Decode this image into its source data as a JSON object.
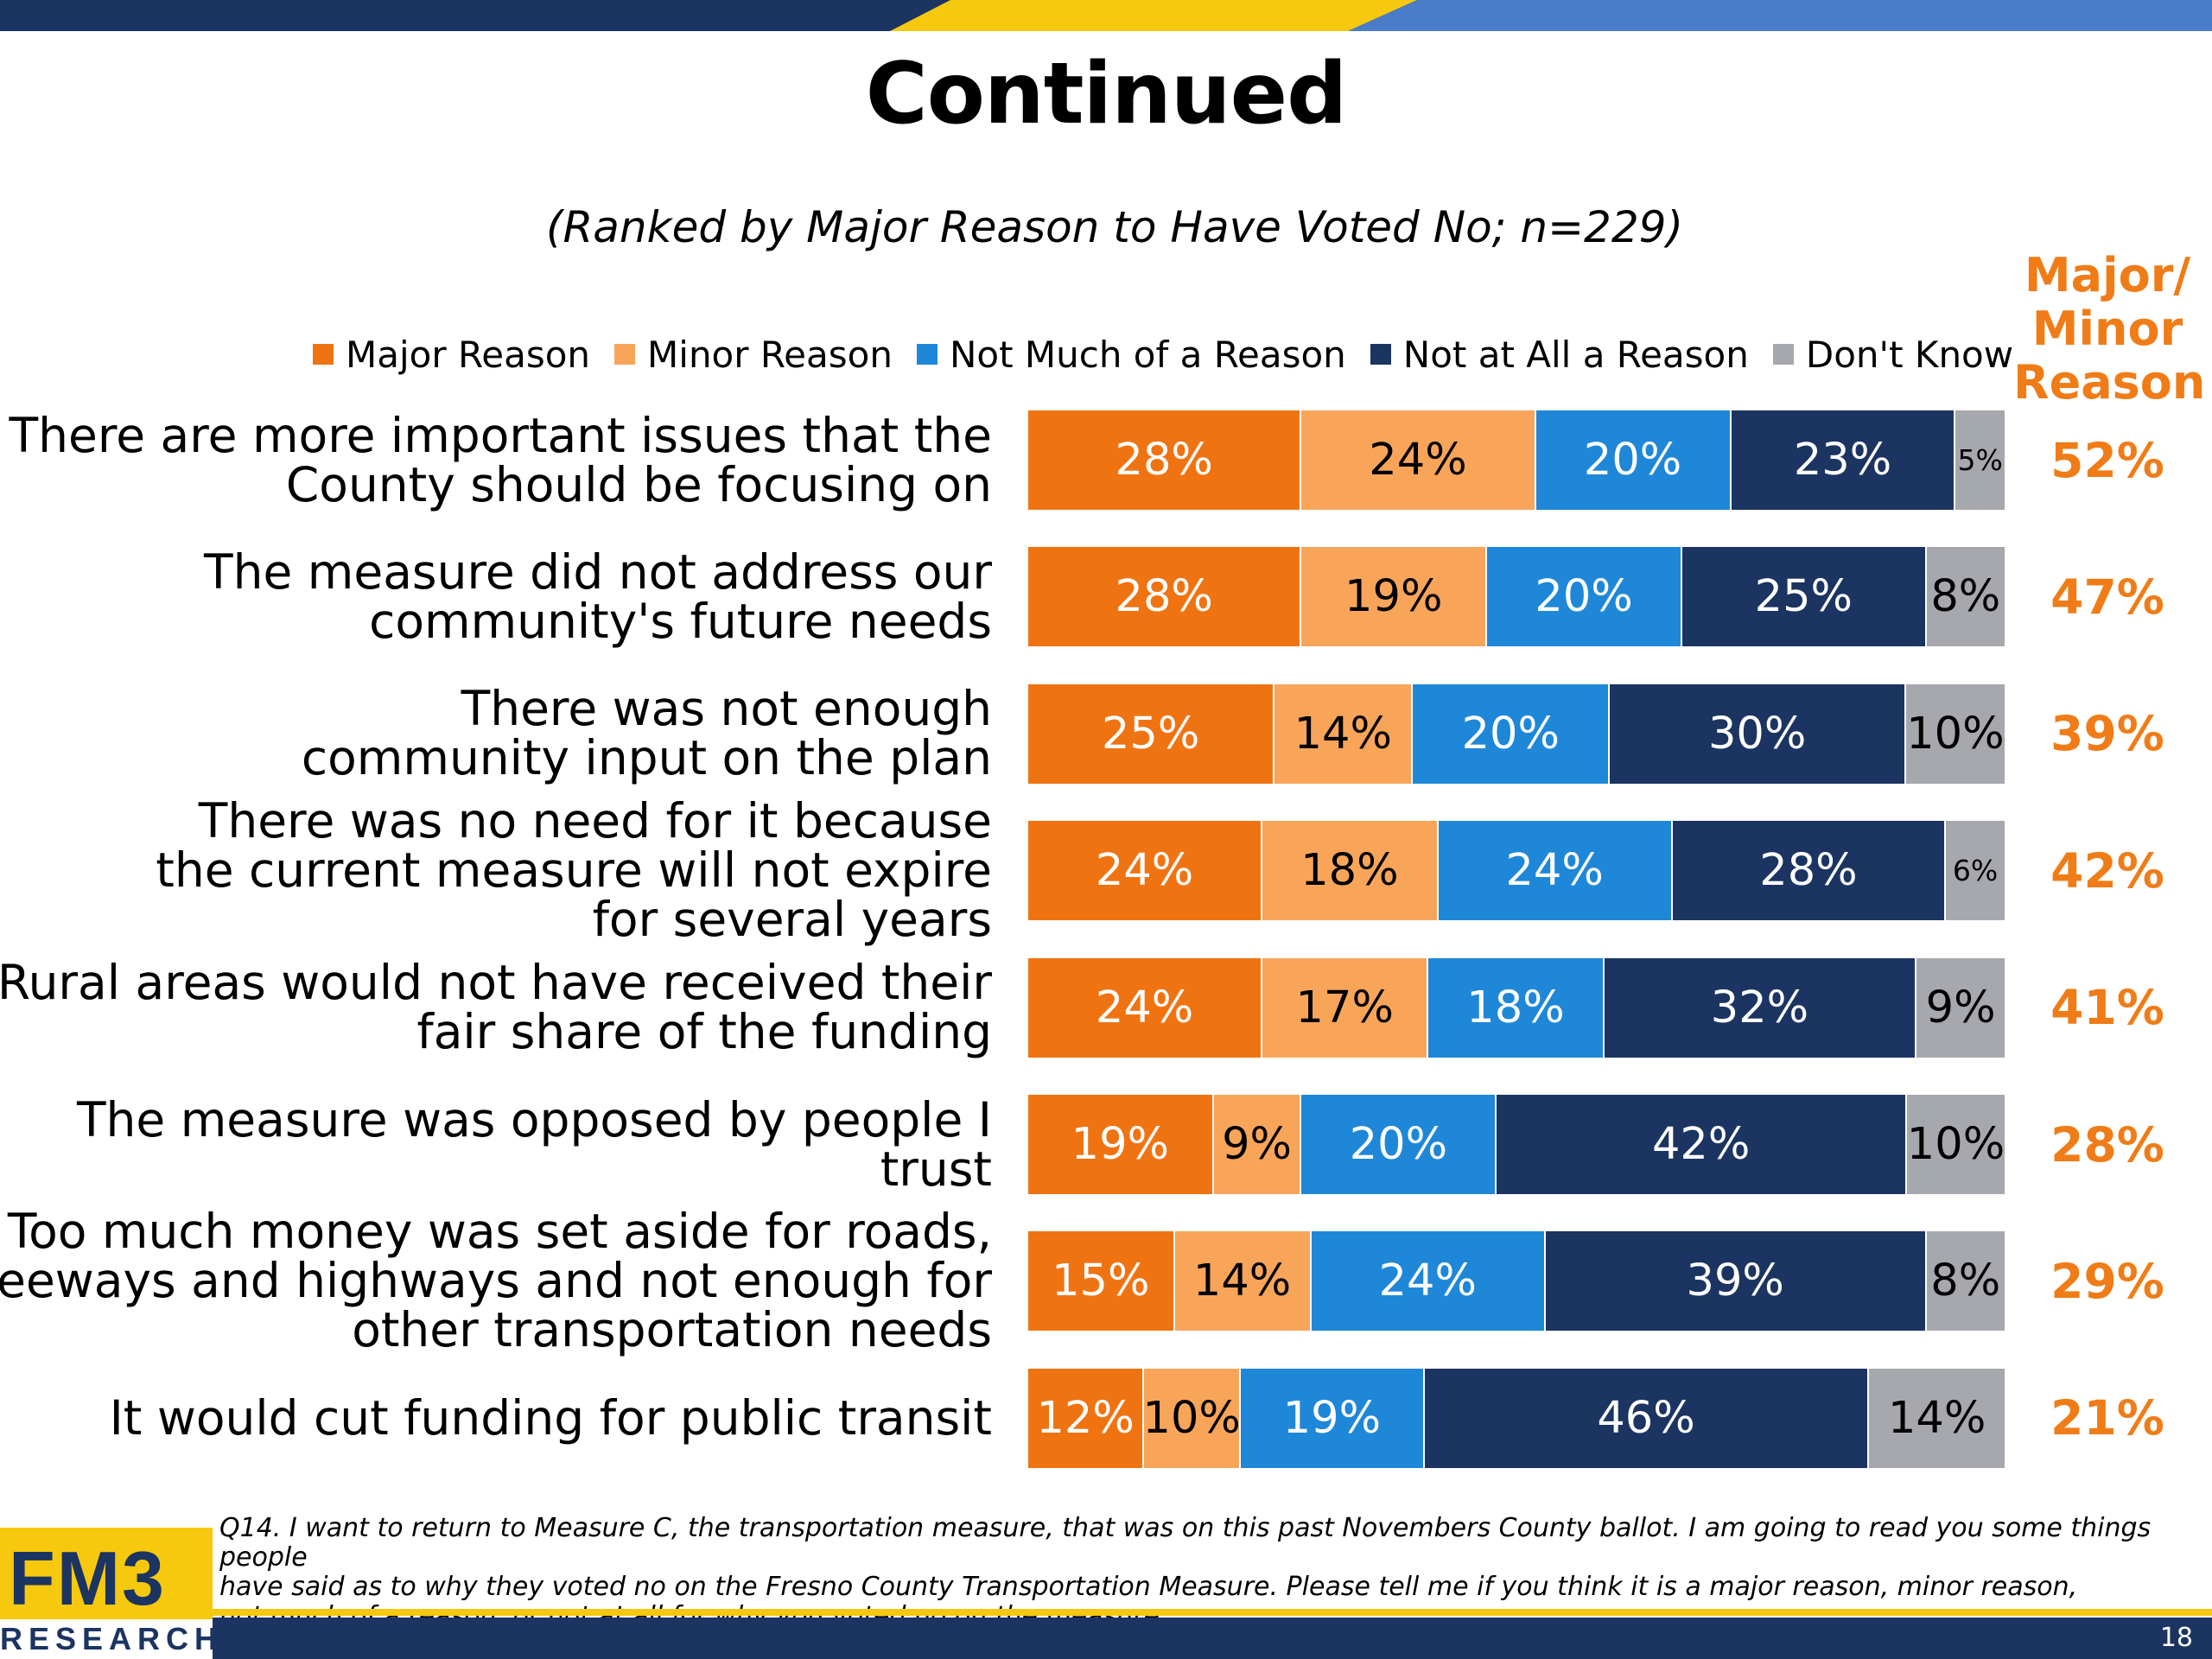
{
  "title": "Continued",
  "subtitle": "(Ranked by Major Reason to Have Voted No; n=229)",
  "major_minor_header": [
    "Major/",
    "Minor",
    "Reason"
  ],
  "colors": {
    "major": "#f07312",
    "minor": "#f8a55a",
    "not_much": "#1f87d8",
    "not_at_all": "#1b3461",
    "dont_know": "#a6a8ad",
    "accent": "#f07c17"
  },
  "footnote": "Q14. I want to return to Measure C, the transportation measure, that was on this past Novembers County ballot. I am going to read you some things people have said as to why they voted no on the Fresno County Transportation Measure. Please tell me if you think it is a major reason, minor reason, not much of a reason, or not at all for why you voted no on the measure.",
  "footnote_lines": [
    "Q14. I want to return to Measure C, the transportation measure, that was on this past Novembers County ballot. I am going to read you some things people",
    "have said as to why they voted no on the Fresno County Transportation Measure. Please tell me if you think it is a major reason, minor reason,",
    "not much of a reason, or not at all for why you voted no on the measure."
  ],
  "logo": {
    "main": "FM3",
    "sub": "RESEARCH"
  },
  "page_number": "18",
  "chart_data": {
    "type": "bar",
    "orientation": "horizontal",
    "stacked": true,
    "series": [
      {
        "name": "Major Reason",
        "color": "#f07312",
        "text_color": "#ffffff",
        "values": [
          28,
          28,
          25,
          24,
          24,
          19,
          15,
          12
        ]
      },
      {
        "name": "Minor Reason",
        "color": "#f8a55a",
        "text_color": "#000000",
        "values": [
          24,
          19,
          14,
          18,
          17,
          9,
          14,
          10
        ]
      },
      {
        "name": "Not Much of a Reason",
        "color": "#1f87d8",
        "text_color": "#ffffff",
        "values": [
          20,
          20,
          20,
          24,
          18,
          20,
          24,
          19
        ]
      },
      {
        "name": "Not at All a Reason",
        "color": "#1b3461",
        "text_color": "#ffffff",
        "values": [
          23,
          25,
          30,
          28,
          32,
          42,
          39,
          46
        ]
      },
      {
        "name": "Don't Know",
        "color": "#a6a8ad",
        "text_color": "#000000",
        "values": [
          5,
          8,
          10,
          6,
          9,
          10,
          8,
          14
        ]
      }
    ],
    "categories": [
      [
        "There are more important issues that the",
        "County should be focusing on"
      ],
      [
        "The measure did not address our",
        "community's future needs"
      ],
      [
        "There was not enough",
        "community input on the plan"
      ],
      [
        "There was no need for it because",
        "the current measure will not expire",
        "for several years"
      ],
      [
        "Rural areas would not have received their",
        "fair share of the funding"
      ],
      [
        "The measure was opposed by people I trust"
      ],
      [
        "Too much money was set aside for roads,",
        "freeways and highways and not enough for",
        "other transportation needs"
      ],
      [
        "It would cut funding for public transit"
      ]
    ],
    "major_minor_totals": [
      "52%",
      "47%",
      "39%",
      "42%",
      "41%",
      "28%",
      "29%",
      "21%"
    ],
    "value_suffix": "%",
    "legend_position": "top"
  }
}
